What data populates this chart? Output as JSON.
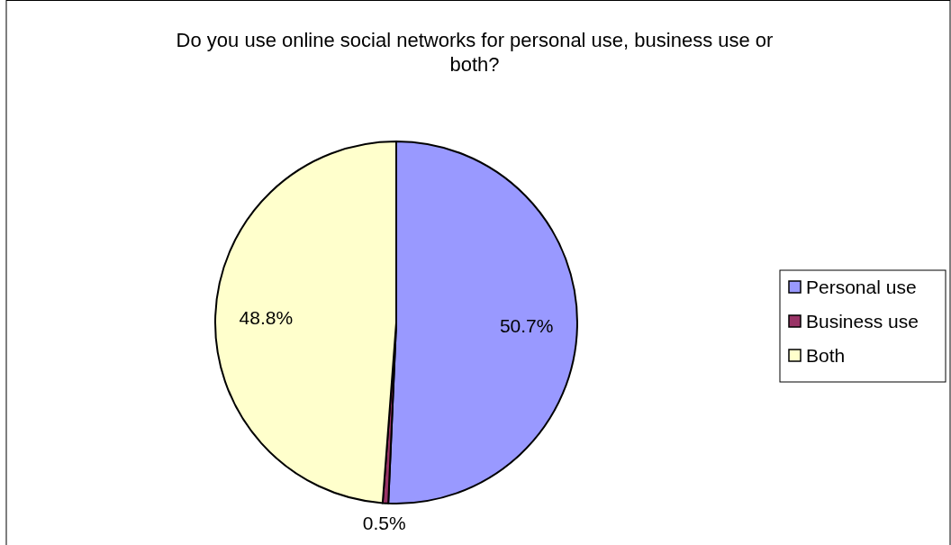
{
  "chart_data": {
    "type": "pie",
    "title": "Do you use online social networks for personal use, business use or both?",
    "categories": [
      "Personal use",
      "Business use",
      "Both"
    ],
    "values": [
      50.7,
      0.5,
      48.8
    ],
    "colors": [
      "#9999ff",
      "#993366",
      "#ffffcc"
    ],
    "value_labels": [
      "50.7%",
      "0.5%",
      "48.8%"
    ],
    "legend": "right"
  }
}
